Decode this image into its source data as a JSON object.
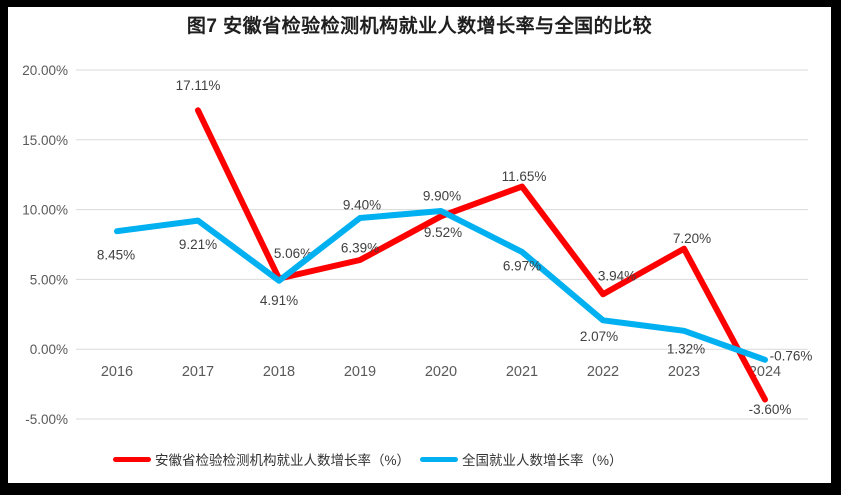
{
  "frame": {
    "border_color": "#000000",
    "background": "#ffffff"
  },
  "chart_data": {
    "type": "line",
    "title": "图7 安徽省检验检测机构就业人数增长率与全国的比较",
    "categories": [
      "2016",
      "2017",
      "2018",
      "2019",
      "2020",
      "2021",
      "2022",
      "2023",
      "2024"
    ],
    "series": [
      {
        "name": "安徽省检验检测机构就业人数增长率（%）",
        "color": "#FF0000",
        "values": [
          null,
          17.11,
          5.06,
          6.39,
          9.52,
          11.65,
          3.94,
          7.2,
          -3.6
        ],
        "labels": [
          "",
          "17.11%",
          "5.06%",
          "6.39%",
          "9.52%",
          "11.65%",
          "3.94%",
          "7.20%",
          "-3.60%"
        ],
        "label_offsets": [
          [
            0,
            0
          ],
          [
            0,
            -25
          ],
          [
            14,
            -25
          ],
          [
            0,
            -12
          ],
          [
            2,
            16
          ],
          [
            2,
            -10
          ],
          [
            14,
            -18
          ],
          [
            8,
            -10
          ],
          [
            5,
            10
          ]
        ]
      },
      {
        "name": "全国就业人数增长率（%）",
        "color": "#00B0F0",
        "values": [
          8.45,
          9.21,
          4.91,
          9.4,
          9.9,
          6.97,
          2.07,
          1.32,
          -0.76
        ],
        "labels": [
          "8.45%",
          "9.21%",
          "4.91%",
          "9.40%",
          "9.90%",
          "6.97%",
          "2.07%",
          "1.32%",
          "-0.76%"
        ],
        "label_offsets": [
          [
            -1,
            24
          ],
          [
            0,
            24
          ],
          [
            0,
            20
          ],
          [
            2,
            -13
          ],
          [
            1,
            -15
          ],
          [
            0,
            14
          ],
          [
            -4,
            16
          ],
          [
            2,
            18
          ],
          [
            26,
            -4
          ]
        ]
      }
    ],
    "y_axis": {
      "ticks": [
        "20.00%",
        "15.00%",
        "10.00%",
        "5.00%",
        "0.00%",
        "-5.00%"
      ],
      "tick_values": [
        20,
        15,
        10,
        5,
        0,
        -5
      ],
      "min": -5,
      "max": 20
    },
    "grid": true,
    "gridline_color": "#D9D9D9",
    "axis_text_color": "#595959",
    "data_label_color": "#404040",
    "legend_position": "bottom"
  }
}
